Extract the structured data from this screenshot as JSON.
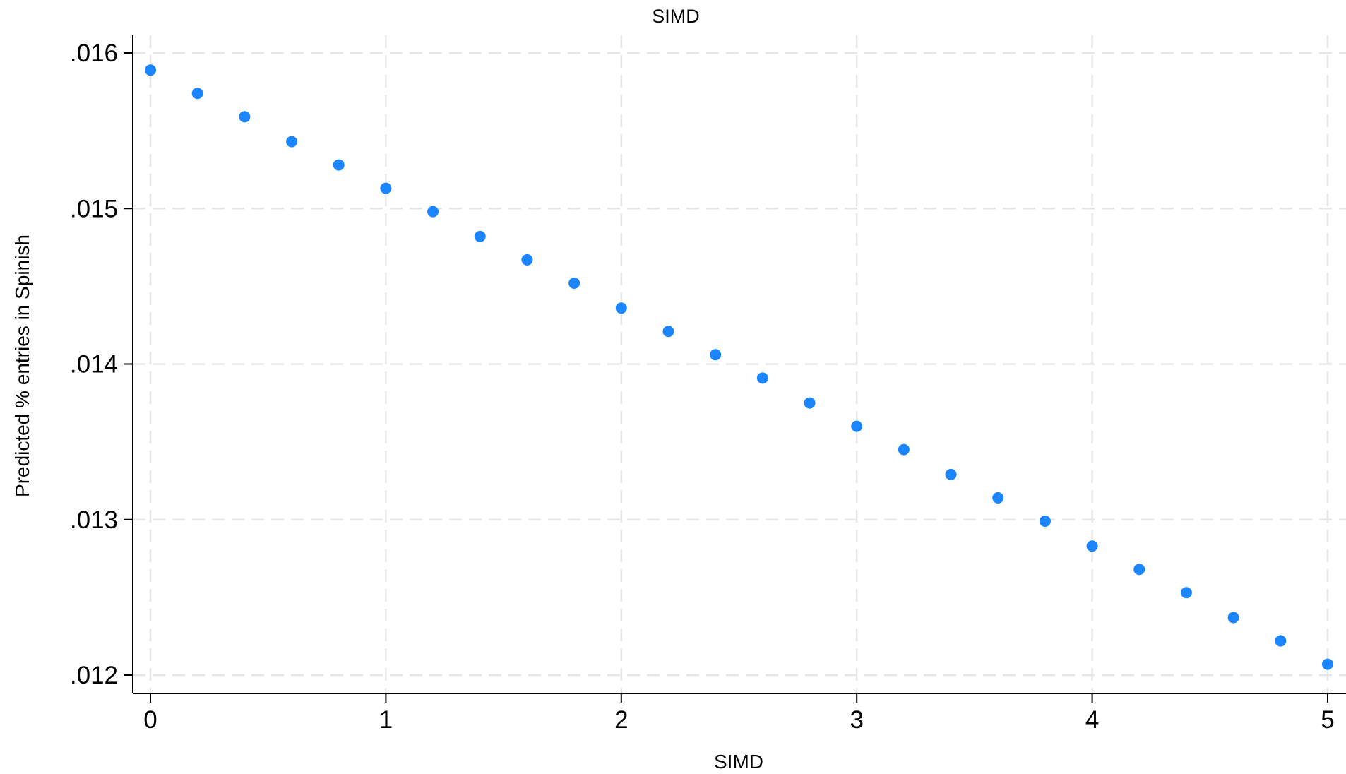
{
  "chart_data": {
    "type": "scatter",
    "title": "SIMD",
    "xlabel": "SIMD",
    "ylabel": "Predicted % entries in Spinish",
    "xlim": [
      0,
      5
    ],
    "ylim": [
      0.012,
      0.016
    ],
    "x_ticks": [
      0,
      1,
      2,
      3,
      4,
      5
    ],
    "x_tick_labels": [
      "0",
      "1",
      "2",
      "3",
      "4",
      "5"
    ],
    "y_ticks": [
      0.012,
      0.013,
      0.014,
      0.015,
      0.016
    ],
    "y_tick_labels": [
      ".012",
      ".013",
      ".014",
      ".015",
      ".016"
    ],
    "grid": true,
    "legend": "none",
    "point_color": "#1a85ff",
    "series": [
      {
        "x": [
          0,
          0.2,
          0.4,
          0.6,
          0.8,
          1.0,
          1.2,
          1.4,
          1.6,
          1.8,
          2.0,
          2.2,
          2.4,
          2.6,
          2.8,
          3.0,
          3.2,
          3.4,
          3.6,
          3.8,
          4.0,
          4.2,
          4.4,
          4.6,
          4.8,
          5.0
        ],
        "y": [
          0.01589,
          0.01574,
          0.01559,
          0.01543,
          0.01528,
          0.01513,
          0.01498,
          0.01482,
          0.01467,
          0.01452,
          0.01436,
          0.01421,
          0.01406,
          0.01391,
          0.01375,
          0.0136,
          0.01345,
          0.01329,
          0.01314,
          0.01299,
          0.01283,
          0.01268,
          0.01253,
          0.01237,
          0.01222,
          0.01207
        ]
      }
    ]
  }
}
